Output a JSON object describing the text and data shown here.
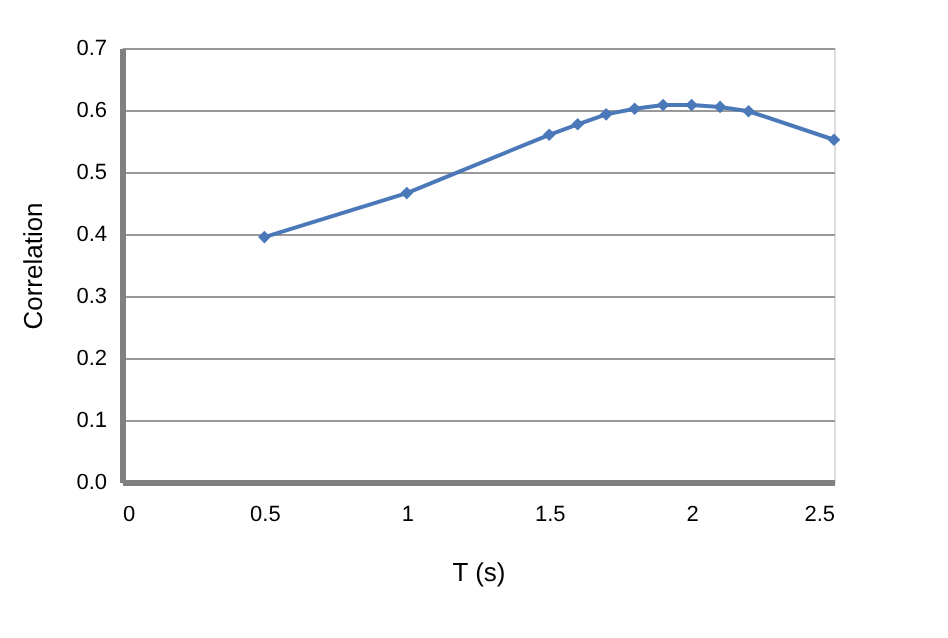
{
  "chart_data": {
    "type": "line",
    "xlabel": "T (s)",
    "ylabel": "Correlation",
    "xlim": [
      0,
      2.5
    ],
    "xticks": [
      0,
      0.5,
      1,
      1.5,
      2,
      2.5
    ],
    "ylim": [
      0,
      0.7
    ],
    "yticks": [
      {
        "value": 0,
        "label": "0.0"
      },
      0.1,
      0.2,
      0.3,
      0.4,
      0.5,
      0.6,
      0.7
    ],
    "grid": "y",
    "marker": "diamond",
    "line_style": "solid",
    "series": [
      {
        "color": "#4a78b8",
        "x": [
          0.5,
          1,
          1.5,
          1.6,
          1.7,
          1.8,
          1.9,
          2.0,
          2.1,
          2.2,
          2.5
        ],
        "values": [
          0.395,
          0.466,
          0.56,
          0.577,
          0.593,
          0.602,
          0.608,
          0.608,
          0.605,
          0.598,
          0.552
        ]
      }
    ]
  }
}
